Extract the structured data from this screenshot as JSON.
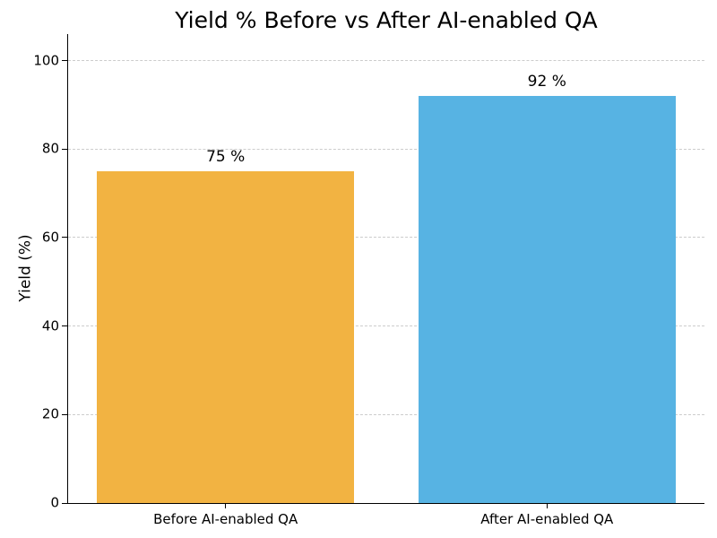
{
  "chart_data": {
    "type": "bar",
    "title": "Yield % Before vs After AI-enabled QA",
    "xlabel": "",
    "ylabel": "Yield (%)",
    "categories": [
      "Before AI-enabled QA",
      "After AI-enabled QA"
    ],
    "values": [
      75,
      92
    ],
    "value_labels": [
      "75 %",
      "92 %"
    ],
    "bar_colors": [
      "#F2B342",
      "#57B3E3"
    ],
    "yticks": [
      0,
      20,
      40,
      60,
      80,
      100
    ],
    "ylim": [
      0,
      106
    ],
    "xlim": [
      -0.49,
      1.49
    ],
    "bar_width": 0.8,
    "grid": "horizontal-dashed",
    "grid_color": "#CCCCCC",
    "axis_color": "#000000",
    "text_color": "#000000",
    "background": "#FFFFFF",
    "legend": "none"
  }
}
